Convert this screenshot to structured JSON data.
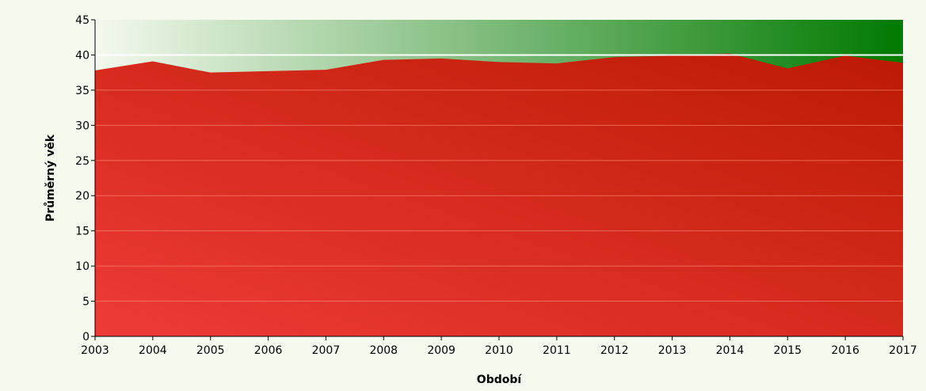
{
  "chart_data": {
    "type": "area",
    "title": "",
    "xlabel": "Období",
    "ylabel": "Průměrný věk",
    "x": [
      "2003",
      "2004",
      "2005",
      "2006",
      "2007",
      "2008",
      "2009",
      "2010",
      "2011",
      "2012",
      "2013",
      "2014",
      "2015",
      "2016",
      "2017"
    ],
    "series": [
      {
        "values": [
          37.8,
          39.1,
          37.5,
          37.7,
          37.9,
          39.3,
          39.5,
          39.0,
          38.8,
          39.7,
          39.9,
          40.2,
          38.1,
          39.9,
          38.9
        ]
      }
    ],
    "reference_line": {
      "y": 40
    },
    "ylim": [
      0,
      45
    ],
    "yticks": [
      "0",
      "5",
      "10",
      "15",
      "20",
      "25",
      "30",
      "35",
      "40",
      "45"
    ],
    "grid": true,
    "legend": "none",
    "colors": {
      "area_light": "#ee3b36",
      "area_dark": "#bc1a04",
      "bg_light": "#f4f9ee",
      "bg_dark": "#007a00",
      "grid": "#ff9f87",
      "reference": "#ffffff",
      "axis": "#000000"
    }
  }
}
